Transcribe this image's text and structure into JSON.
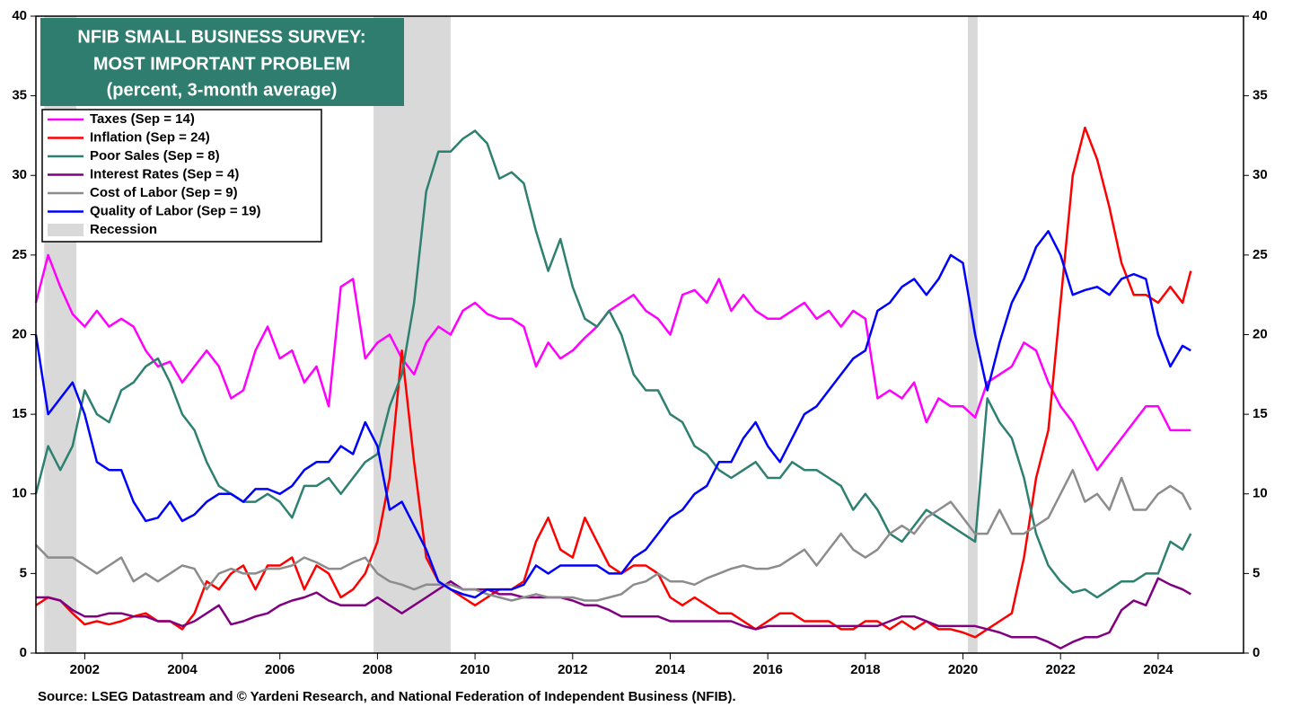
{
  "chart_data": {
    "type": "line",
    "title": [
      "NFIB SMALL BUSINESS SURVEY:",
      "MOST IMPORTANT PROBLEM",
      "(percent, 3-month average)"
    ],
    "source": "Source: LSEG Datastream and © Yardeni Research, and National Federation of Independent Business (NFIB).",
    "xlim": [
      2001,
      2025.75
    ],
    "xticks": [
      2002,
      2004,
      2006,
      2008,
      2010,
      2012,
      2014,
      2016,
      2018,
      2020,
      2022,
      2024
    ],
    "ylim": [
      0,
      40
    ],
    "yticks": [
      0,
      5,
      10,
      15,
      20,
      25,
      30,
      35,
      40
    ],
    "y2lim": [
      0,
      40
    ],
    "y2ticks": [
      0,
      5,
      10,
      15,
      20,
      25,
      30,
      35,
      40
    ],
    "grid": false,
    "legend": "upper left",
    "recessions": {
      "name": "Recession",
      "color": "#d9d9d9",
      "spans": [
        [
          2001.17,
          2001.83
        ],
        [
          2007.92,
          2009.5
        ],
        [
          2020.1,
          2020.3
        ]
      ]
    },
    "x": [
      2001,
      2001.25,
      2001.5,
      2001.75,
      2002,
      2002.25,
      2002.5,
      2002.75,
      2003,
      2003.25,
      2003.5,
      2003.75,
      2004,
      2004.25,
      2004.5,
      2004.75,
      2005,
      2005.25,
      2005.5,
      2005.75,
      2006,
      2006.25,
      2006.5,
      2006.75,
      2007,
      2007.25,
      2007.5,
      2007.75,
      2008,
      2008.25,
      2008.5,
      2008.75,
      2009,
      2009.25,
      2009.5,
      2009.75,
      2010,
      2010.25,
      2010.5,
      2010.75,
      2011,
      2011.25,
      2011.5,
      2011.75,
      2012,
      2012.25,
      2012.5,
      2012.75,
      2013,
      2013.25,
      2013.5,
      2013.75,
      2014,
      2014.25,
      2014.5,
      2014.75,
      2015,
      2015.25,
      2015.5,
      2015.75,
      2016,
      2016.25,
      2016.5,
      2016.75,
      2017,
      2017.25,
      2017.5,
      2017.75,
      2018,
      2018.25,
      2018.5,
      2018.75,
      2019,
      2019.25,
      2019.5,
      2019.75,
      2020,
      2020.25,
      2020.5,
      2020.75,
      2021,
      2021.25,
      2021.5,
      2021.75,
      2022,
      2022.25,
      2022.5,
      2022.75,
      2023,
      2023.25,
      2023.5,
      2023.75,
      2024,
      2024.25,
      2024.5,
      2024.67
    ],
    "series": [
      {
        "name": "Taxes (Sep = 14)",
        "color": "#ff00ff",
        "values": [
          22,
          25,
          23,
          21.3,
          20.5,
          21.5,
          20.5,
          21,
          20.5,
          19,
          18,
          18.3,
          17,
          18,
          19,
          18,
          16,
          16.5,
          19,
          20.5,
          18.5,
          19,
          17,
          18,
          15.5,
          23,
          23.5,
          18.5,
          19.5,
          20,
          18.5,
          17.5,
          19.5,
          20.5,
          20,
          21.5,
          22,
          21.3,
          21,
          21,
          20.5,
          18,
          19.5,
          18.5,
          19,
          19.8,
          20.5,
          21.5,
          22,
          22.5,
          21.5,
          21,
          20,
          22.5,
          22.8,
          22,
          23.5,
          21.5,
          22.5,
          21.5,
          21,
          21,
          21.5,
          22,
          21,
          21.5,
          20.5,
          21.5,
          21,
          16,
          16.5,
          16,
          17,
          14.5,
          16,
          15.5,
          15.5,
          14.8,
          17,
          17.5,
          18,
          19.5,
          19,
          17,
          15.5,
          14.5,
          13,
          11.5,
          12.5,
          13.5,
          14.5,
          15.5,
          15.5,
          14,
          14,
          14
        ]
      },
      {
        "name": "Inflation (Sep = 24)",
        "color": "#ff0000",
        "values": [
          3,
          3.5,
          3.3,
          2.5,
          1.8,
          2,
          1.8,
          2,
          2.3,
          2.5,
          2,
          2,
          1.5,
          2.5,
          4.5,
          4,
          5,
          5.5,
          4,
          5.5,
          5.5,
          6,
          4,
          5.5,
          5,
          3.5,
          4,
          5,
          7,
          11,
          19,
          12,
          6,
          4.5,
          4,
          3.5,
          3,
          3.5,
          4,
          4,
          4.5,
          7,
          8.5,
          6.5,
          6,
          8.5,
          7,
          5.5,
          5,
          5.5,
          5.5,
          5,
          3.5,
          3,
          3.5,
          3,
          2.5,
          2.5,
          2,
          1.5,
          2,
          2.5,
          2.5,
          2,
          2,
          2,
          1.5,
          1.5,
          2,
          2,
          1.5,
          2,
          1.5,
          2,
          1.5,
          1.5,
          1.3,
          1,
          1.5,
          2,
          2.5,
          6,
          11,
          14,
          22,
          30,
          33,
          31,
          28,
          24.5,
          22.5,
          22.5,
          22,
          23,
          22,
          24
        ]
      },
      {
        "name": "Poor Sales (Sep = 8)",
        "color": "#2e8070",
        "values": [
          10,
          13,
          11.5,
          13,
          16.5,
          15,
          14.5,
          16.5,
          17,
          18,
          18.5,
          17,
          15,
          14,
          12,
          10.5,
          10,
          9.5,
          9.5,
          10,
          9.5,
          8.5,
          10.5,
          10.5,
          11,
          10,
          11,
          12,
          12.5,
          15.5,
          17.5,
          22,
          29,
          31.5,
          31.5,
          32.3,
          32.8,
          32,
          29.8,
          30.2,
          29.5,
          26.5,
          24,
          26,
          23,
          21,
          20.5,
          21.5,
          20,
          17.5,
          16.5,
          16.5,
          15,
          14.5,
          13,
          12.5,
          11.5,
          11,
          11.5,
          12,
          11,
          11,
          12,
          11.5,
          11.5,
          11,
          10.5,
          9,
          10,
          9,
          7.5,
          7,
          8,
          9,
          8.5,
          8,
          7.5,
          7,
          16,
          14.5,
          13.5,
          11,
          7.5,
          5.5,
          4.5,
          3.8,
          4,
          3.5,
          4,
          4.5,
          4.5,
          5,
          5,
          7,
          6.5,
          7.5
        ]
      },
      {
        "name": "Interest Rates (Sep = 4)",
        "color": "#800080",
        "values": [
          3.5,
          3.5,
          3.3,
          2.7,
          2.3,
          2.3,
          2.5,
          2.5,
          2.3,
          2.3,
          2,
          2,
          1.7,
          2,
          2.5,
          3,
          1.8,
          2,
          2.3,
          2.5,
          3,
          3.3,
          3.5,
          3.8,
          3.3,
          3,
          3,
          3,
          3.5,
          3,
          2.5,
          3,
          3.5,
          4,
          4.5,
          4,
          4,
          4,
          3.7,
          3.7,
          3.5,
          3.5,
          3.5,
          3.5,
          3.3,
          3,
          3,
          2.7,
          2.3,
          2.3,
          2.3,
          2.3,
          2,
          2,
          2,
          2,
          2,
          2,
          1.7,
          1.5,
          1.7,
          1.7,
          1.7,
          1.7,
          1.7,
          1.7,
          1.7,
          1.7,
          1.7,
          1.7,
          2,
          2.3,
          2.3,
          2,
          1.7,
          1.7,
          1.7,
          1.7,
          1.5,
          1.3,
          1,
          1,
          1,
          0.7,
          0.3,
          0.7,
          1,
          1,
          1.3,
          2.7,
          3.3,
          3,
          4.7,
          4.3,
          4,
          3.7
        ]
      },
      {
        "name": "Cost of Labor (Sep = 9)",
        "color": "#8c8c8c",
        "values": [
          6.8,
          6,
          6,
          6,
          5.5,
          5,
          5.5,
          6,
          4.5,
          5,
          4.5,
          5,
          5.5,
          5.3,
          4,
          5,
          5.3,
          5,
          5,
          5.3,
          5.3,
          5.5,
          6,
          5.7,
          5.3,
          5.3,
          5.7,
          6,
          5,
          4.5,
          4.3,
          4,
          4.3,
          4.3,
          4.3,
          4,
          4,
          3.7,
          3.5,
          3.3,
          3.5,
          3.7,
          3.5,
          3.5,
          3.5,
          3.3,
          3.3,
          3.5,
          3.7,
          4.3,
          4.5,
          5,
          4.5,
          4.5,
          4.3,
          4.7,
          5,
          5.3,
          5.5,
          5.3,
          5.3,
          5.5,
          6,
          6.5,
          5.5,
          6.5,
          7.5,
          6.5,
          6,
          6.5,
          7.5,
          8,
          7.5,
          8.5,
          9,
          9.5,
          8.5,
          7.5,
          7.5,
          9,
          7.5,
          7.5,
          8,
          8.5,
          10,
          11.5,
          9.5,
          10,
          9,
          11,
          9,
          9,
          10,
          10.5,
          10,
          9
        ]
      },
      {
        "name": "Quality of Labor (Sep = 19)",
        "color": "#0000ff",
        "values": [
          20,
          15,
          16,
          17,
          15,
          12,
          11.5,
          11.5,
          9.5,
          8.3,
          8.5,
          9.5,
          8.3,
          8.7,
          9.5,
          10,
          10,
          9.5,
          10.3,
          10.3,
          10,
          10.5,
          11.5,
          12,
          12,
          13,
          12.5,
          14.5,
          13,
          9,
          9.5,
          8,
          6.5,
          4.5,
          4,
          3.7,
          3.5,
          4,
          4,
          4,
          4.3,
          5.5,
          5,
          5.5,
          5.5,
          5.5,
          5.5,
          5,
          5,
          6,
          6.5,
          7.5,
          8.5,
          9,
          10,
          10.5,
          12,
          12,
          13.5,
          14.5,
          13,
          12,
          13.5,
          15,
          15.5,
          16.5,
          17.5,
          18.5,
          19,
          21.5,
          22,
          23,
          23.5,
          22.5,
          23.5,
          25,
          24.5,
          20,
          16.5,
          19.5,
          22,
          23.5,
          25.5,
          26.5,
          25,
          22.5,
          22.8,
          23,
          22.5,
          23.5,
          23.8,
          23.5,
          20,
          18,
          19.3,
          19
        ]
      }
    ]
  }
}
